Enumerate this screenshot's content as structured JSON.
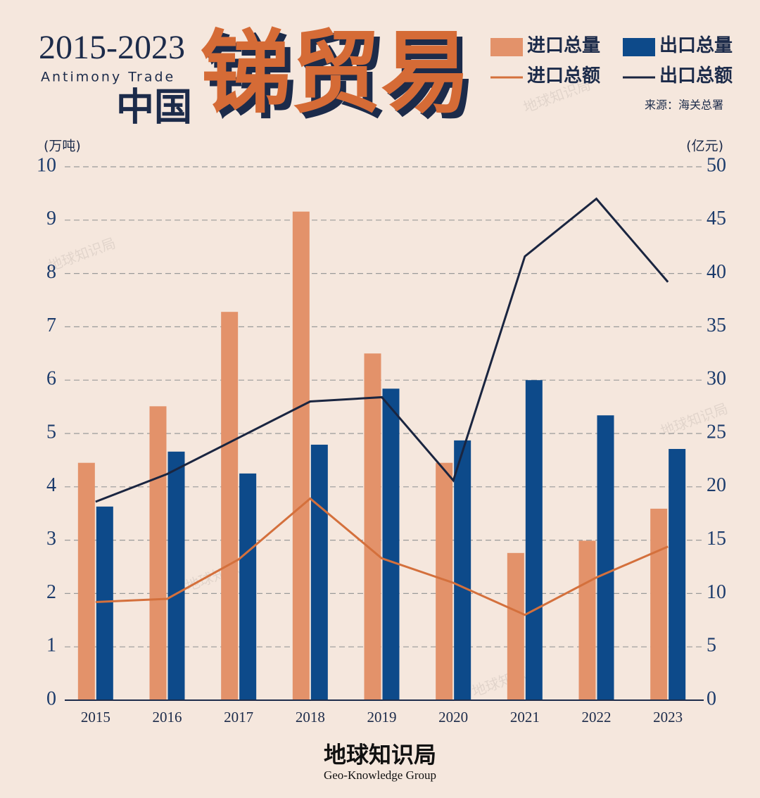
{
  "chart_data": {
    "type": "bar",
    "years": "2015-2023",
    "subtitle": "Antimony Trade",
    "region": "中国",
    "title": "锑贸易",
    "source": "来源：海关总署",
    "ylabel": "(万吨)",
    "y2label": "(亿元)",
    "categories": [
      "2015",
      "2016",
      "2017",
      "2018",
      "2019",
      "2020",
      "2021",
      "2022",
      "2023"
    ],
    "series": [
      {
        "name": "进口总量",
        "type": "bar",
        "color": "#e3926a",
        "values": [
          4.45,
          5.51,
          7.28,
          9.16,
          6.5,
          4.45,
          2.76,
          2.99,
          3.59
        ]
      },
      {
        "name": "出口总量",
        "type": "bar",
        "color": "#0d4a8a",
        "values": [
          3.63,
          4.66,
          4.25,
          4.79,
          5.84,
          4.87,
          6.0,
          5.34,
          4.71
        ]
      },
      {
        "name": "进口总额",
        "type": "line",
        "axis": "y2",
        "color": "#d4703c",
        "values": [
          9.2,
          9.5,
          13.2,
          18.9,
          13.3,
          11.0,
          8.0,
          11.5,
          14.4
        ]
      },
      {
        "name": "出口总额",
        "type": "line",
        "axis": "y2",
        "color": "#1a2540",
        "values": [
          18.6,
          21.2,
          24.6,
          28.0,
          28.4,
          20.6,
          41.6,
          47.0,
          39.2
        ]
      }
    ],
    "ylim": [
      0,
      10
    ],
    "yticks": [
      0,
      1,
      2,
      3,
      4,
      5,
      6,
      7,
      8,
      9,
      10
    ],
    "y2lim": [
      0,
      50
    ],
    "y2ticks": [
      0,
      5,
      10,
      15,
      20,
      25,
      30,
      35,
      40,
      45,
      50
    ],
    "grid": true
  },
  "footer": {
    "brand": "地球知识局",
    "brand_en": "Geo-Knowledge Group"
  }
}
